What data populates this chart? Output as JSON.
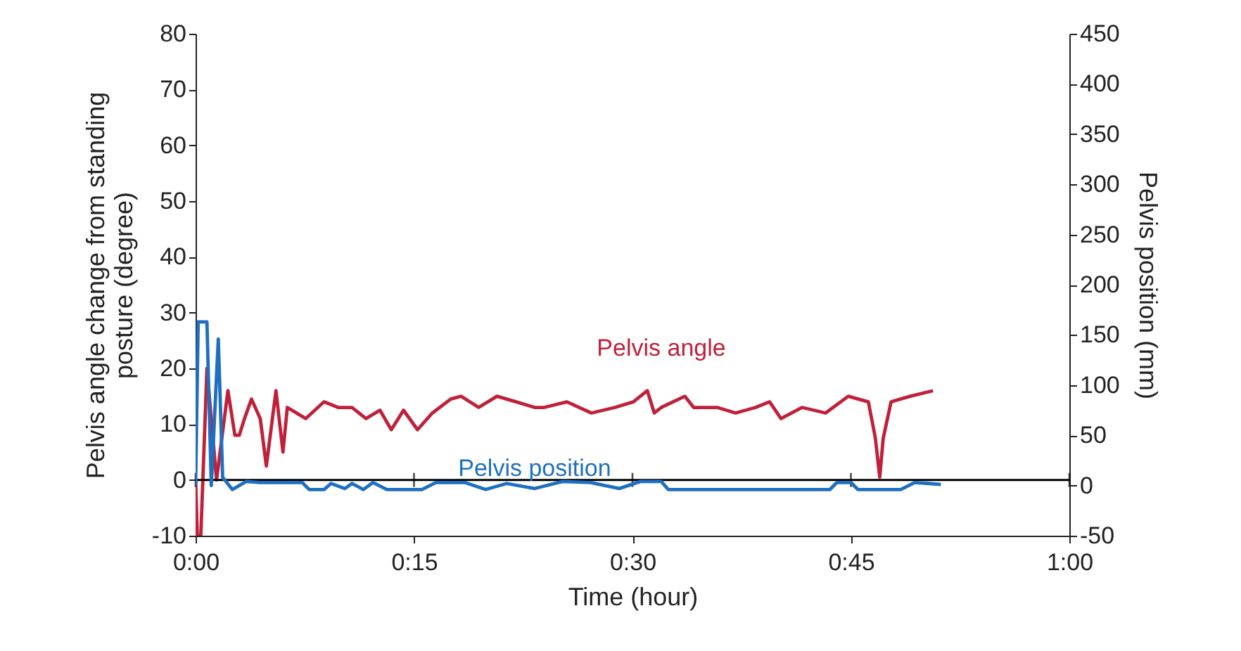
{
  "chart_data": {
    "type": "line",
    "xlabel": "Time (hour)",
    "ylabel": "Pelvis angle change from standing posture (degree)",
    "y2label": "Pelvis position (mm)",
    "xlim": [
      0,
      1
    ],
    "xticks": [
      {
        "value": 0,
        "label": "0:00"
      },
      {
        "value": 0.25,
        "label": "0:15"
      },
      {
        "value": 0.5,
        "label": "0:30"
      },
      {
        "value": 0.75,
        "label": "0:45"
      },
      {
        "value": 1,
        "label": "1:00"
      }
    ],
    "ylim": [
      -10,
      80
    ],
    "yticks": [
      -10,
      0,
      10,
      20,
      30,
      40,
      50,
      60,
      70,
      80
    ],
    "y2lim": [
      -50,
      450
    ],
    "y2ticks": [
      -50,
      0,
      50,
      100,
      150,
      200,
      250,
      300,
      350,
      400,
      450
    ],
    "grid": false,
    "marker": "none",
    "line_style": "solid",
    "ref_lines": [
      {
        "axis": "y",
        "value": 0,
        "color": "#000000"
      }
    ],
    "series": [
      {
        "name": "Pelvis angle",
        "color": "#c0213a",
        "x": [
          0,
          0.002,
          0.006,
          0.013,
          0.024,
          0.037,
          0.045,
          0.05,
          0.056,
          0.064,
          0.074,
          0.081,
          0.092,
          0.1,
          0.105,
          0.126,
          0.147,
          0.163,
          0.179,
          0.195,
          0.211,
          0.224,
          0.238,
          0.254,
          0.271,
          0.292,
          0.304,
          0.324,
          0.345,
          0.367,
          0.388,
          0.399,
          0.425,
          0.453,
          0.48,
          0.501,
          0.517,
          0.525,
          0.533,
          0.56,
          0.57,
          0.597,
          0.618,
          0.641,
          0.657,
          0.67,
          0.694,
          0.721,
          0.747,
          0.77,
          0.778,
          0.783,
          0.787,
          0.796,
          0.818,
          0.844
        ],
        "values": [
          0,
          -10,
          -10,
          20,
          0,
          16,
          8,
          8,
          11,
          14.5,
          11,
          2.5,
          16,
          5,
          13,
          11,
          14,
          13,
          13,
          11,
          12.5,
          9,
          12.5,
          9,
          12,
          14.5,
          15,
          13,
          15,
          14,
          13,
          13,
          14,
          12,
          13,
          14,
          16,
          12,
          13,
          15,
          13,
          13,
          12,
          13,
          14,
          11,
          13,
          12,
          15,
          14,
          7.5,
          0.5,
          7.5,
          14,
          15,
          16
        ]
      },
      {
        "name": "Pelvis position",
        "color": "#1f6fc0",
        "axis": "y2",
        "x": [
          0,
          0.003,
          0.013,
          0.018,
          0.026,
          0.031,
          0.034,
          0.042,
          0.058,
          0.074,
          0.122,
          0.13,
          0.147,
          0.155,
          0.171,
          0.179,
          0.192,
          0.203,
          0.219,
          0.259,
          0.275,
          0.308,
          0.332,
          0.356,
          0.388,
          0.42,
          0.452,
          0.485,
          0.509,
          0.533,
          0.541,
          0.581,
          0.726,
          0.734,
          0.75,
          0.758,
          0.807,
          0.823,
          0.839,
          0.853
        ],
        "values": [
          0,
          163,
          163,
          0,
          146,
          8,
          5,
          -4,
          4,
          3,
          3,
          -4,
          -4,
          2,
          -3,
          2,
          -4,
          3,
          -4,
          -4,
          3,
          3,
          -4,
          2,
          -3,
          4,
          3,
          -3,
          4,
          4,
          -4,
          -4,
          -4,
          3,
          3,
          -4,
          -4,
          3,
          2,
          1
        ]
      }
    ]
  }
}
